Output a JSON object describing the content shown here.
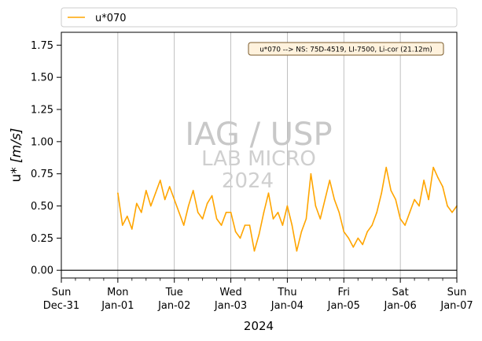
{
  "chart_data": {
    "type": "line",
    "title": "",
    "xlabel": "2024",
    "ylabel_prefix": "u* ",
    "ylabel_unit": "[m/s]",
    "xlim": [
      "2023-12-31T00:00",
      "2024-01-07T00:00"
    ],
    "ylim": [
      -0.06,
      1.85
    ],
    "yticks": [
      0.0,
      0.25,
      0.5,
      0.75,
      1.0,
      1.25,
      1.5,
      1.75
    ],
    "ytick_labels": [
      "0.00",
      "0.25",
      "0.50",
      "0.75",
      "1.00",
      "1.25",
      "1.50",
      "1.75"
    ],
    "xticks": [
      {
        "date": "2023-12-31",
        "day": "Sun",
        "label": "Dec-31"
      },
      {
        "date": "2024-01-01",
        "day": "Mon",
        "label": "Jan-01"
      },
      {
        "date": "2024-01-02",
        "day": "Tue",
        "label": "Jan-02"
      },
      {
        "date": "2024-01-03",
        "day": "Wed",
        "label": "Jan-03"
      },
      {
        "date": "2024-01-04",
        "day": "Thu",
        "label": "Jan-04"
      },
      {
        "date": "2024-01-05",
        "day": "Fri",
        "label": "Jan-05"
      },
      {
        "date": "2024-01-06",
        "day": "Sat",
        "label": "Jan-06"
      },
      {
        "date": "2024-01-07",
        "day": "Sun",
        "label": "Jan-07"
      }
    ],
    "grid": "vertical-major",
    "zero_line": true,
    "legend_position": "top",
    "annotation": "u*070 --> NS: 75D-4519, LI-7500, Li-cor (21.12m)",
    "watermark": [
      "IAG / USP",
      "LAB MICRO",
      "2024"
    ],
    "series": [
      {
        "name": "u*070",
        "color": "#FFA500",
        "x": [
          "2024-01-01T00:00",
          "2024-01-01T02:00",
          "2024-01-01T04:00",
          "2024-01-01T06:00",
          "2024-01-01T08:00",
          "2024-01-01T10:00",
          "2024-01-01T12:00",
          "2024-01-01T14:00",
          "2024-01-01T16:00",
          "2024-01-01T18:00",
          "2024-01-01T20:00",
          "2024-01-01T22:00",
          "2024-01-02T00:00",
          "2024-01-02T02:00",
          "2024-01-02T04:00",
          "2024-01-02T06:00",
          "2024-01-02T08:00",
          "2024-01-02T10:00",
          "2024-01-02T12:00",
          "2024-01-02T14:00",
          "2024-01-02T16:00",
          "2024-01-02T18:00",
          "2024-01-02T20:00",
          "2024-01-02T22:00",
          "2024-01-03T00:00",
          "2024-01-03T02:00",
          "2024-01-03T04:00",
          "2024-01-03T06:00",
          "2024-01-03T08:00",
          "2024-01-03T10:00",
          "2024-01-03T12:00",
          "2024-01-03T14:00",
          "2024-01-03T16:00",
          "2024-01-03T18:00",
          "2024-01-03T20:00",
          "2024-01-03T22:00",
          "2024-01-04T00:00",
          "2024-01-04T02:00",
          "2024-01-04T04:00",
          "2024-01-04T06:00",
          "2024-01-04T08:00",
          "2024-01-04T10:00",
          "2024-01-04T12:00",
          "2024-01-04T14:00",
          "2024-01-04T16:00",
          "2024-01-04T18:00",
          "2024-01-04T20:00",
          "2024-01-04T22:00",
          "2024-01-05T00:00",
          "2024-01-05T02:00",
          "2024-01-05T04:00",
          "2024-01-05T06:00",
          "2024-01-05T08:00",
          "2024-01-05T10:00",
          "2024-01-05T12:00",
          "2024-01-05T14:00",
          "2024-01-05T16:00",
          "2024-01-05T18:00",
          "2024-01-05T20:00",
          "2024-01-05T22:00",
          "2024-01-06T00:00",
          "2024-01-06T02:00",
          "2024-01-06T04:00",
          "2024-01-06T06:00",
          "2024-01-06T08:00",
          "2024-01-06T10:00",
          "2024-01-06T12:00",
          "2024-01-06T14:00",
          "2024-01-06T16:00",
          "2024-01-06T18:00",
          "2024-01-06T20:00",
          "2024-01-06T22:00",
          "2024-01-07T00:00"
        ],
        "values": [
          0.6,
          0.35,
          0.42,
          0.32,
          0.52,
          0.45,
          0.62,
          0.5,
          0.6,
          0.7,
          0.55,
          0.65,
          0.55,
          0.45,
          0.35,
          0.5,
          0.62,
          0.45,
          0.4,
          0.52,
          0.58,
          0.4,
          0.35,
          0.45,
          0.45,
          0.3,
          0.25,
          0.35,
          0.35,
          0.15,
          0.28,
          0.45,
          0.6,
          0.4,
          0.45,
          0.35,
          0.5,
          0.35,
          0.15,
          0.3,
          0.4,
          0.75,
          0.5,
          0.4,
          0.55,
          0.7,
          0.55,
          0.45,
          0.3,
          0.25,
          0.18,
          0.25,
          0.2,
          0.3,
          0.35,
          0.45,
          0.6,
          0.8,
          0.62,
          0.55,
          0.4,
          0.35,
          0.45,
          0.55,
          0.5,
          0.7,
          0.55,
          0.8,
          0.72,
          0.65,
          0.5,
          0.45,
          0.5
        ]
      }
    ]
  }
}
